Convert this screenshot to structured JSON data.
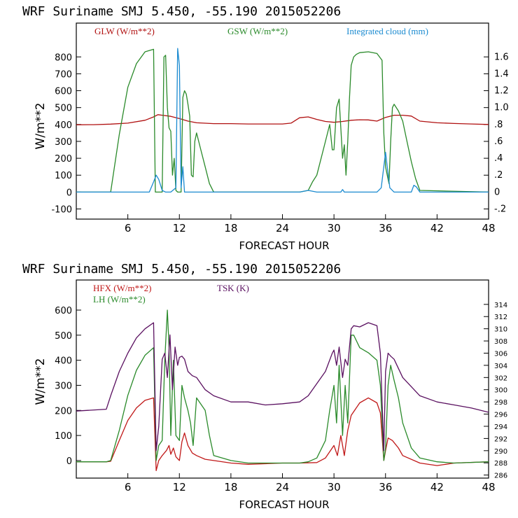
{
  "colors": {
    "glw": "#b01010",
    "gsw": "#2a8a2a",
    "cloud": "#1a8ad0",
    "hfx": "#c01818",
    "lh": "#2a8a2a",
    "tsk": "#5a1060",
    "axis": "#000000"
  },
  "chart_data": [
    {
      "type": "line",
      "title": "WRF   Suriname SMJ   5.450, -55.190  2015052206",
      "xlabel": "FORECAST HOUR",
      "ylabel": "W/m**2",
      "xlim": [
        0,
        48
      ],
      "ylim": [
        -160,
        1000
      ],
      "xticks": [
        6,
        12,
        18,
        24,
        30,
        36,
        42,
        48
      ],
      "xtick_labels": [
        "6",
        "12",
        "18",
        "24",
        "30",
        "36",
        "42",
        "48"
      ],
      "yticks": [
        -100,
        0,
        100,
        200,
        300,
        400,
        500,
        600,
        700,
        800
      ],
      "ytick_labels": [
        "-100",
        "0",
        "100",
        "200",
        "300",
        "400",
        "500",
        "600",
        "700",
        "800"
      ],
      "y2lim": [
        -0.32,
        2.0
      ],
      "y2ticks": [
        -0.2,
        0,
        0.2,
        0.4,
        0.6,
        0.8,
        1.0,
        1.2,
        1.4,
        1.6
      ],
      "y2tick_labels": [
        "-.2",
        "0",
        ".2",
        ".4",
        ".6",
        ".8",
        "1.0",
        "1.2",
        "1.4",
        "1.6"
      ],
      "legend": [
        "GLW (W/m**2)",
        "GSW (W/m**2)",
        "Integrated cloud (mm)"
      ],
      "series": [
        {
          "name": "GLW (W/m**2)",
          "color_key": "glw",
          "axis": "left",
          "x": [
            0,
            2,
            4,
            6,
            8,
            9,
            9.5,
            10,
            11,
            12,
            13,
            14,
            16,
            18,
            20,
            22,
            24,
            25,
            26,
            27,
            28,
            29,
            30,
            31,
            32,
            33,
            34,
            35,
            36,
            37,
            38,
            39,
            40,
            42,
            44,
            46,
            48
          ],
          "y": [
            398,
            399,
            402,
            408,
            425,
            445,
            458,
            455,
            448,
            435,
            420,
            410,
            405,
            405,
            403,
            403,
            403,
            408,
            440,
            445,
            430,
            418,
            413,
            418,
            425,
            428,
            427,
            420,
            442,
            455,
            455,
            450,
            420,
            410,
            406,
            403,
            400
          ]
        },
        {
          "name": "GSW (W/m**2)",
          "color_key": "gsw",
          "axis": "left",
          "x": [
            0,
            3,
            3.5,
            4,
            5,
            6,
            7,
            8,
            9,
            9.2,
            9.4,
            9.6,
            9.8,
            10,
            10.2,
            10.4,
            10.6,
            10.8,
            11,
            11.2,
            11.4,
            11.6,
            11.8,
            12,
            12.2,
            12.4,
            12.6,
            12.8,
            13,
            13.2,
            13.4,
            13.6,
            13.8,
            14,
            14.5,
            15,
            15.5,
            16,
            26,
            27,
            27.5,
            28,
            29,
            29.5,
            29.8,
            30,
            30.3,
            30.6,
            31,
            31.2,
            31.4,
            31.6,
            31.8,
            32,
            32.3,
            32.6,
            33,
            34,
            35,
            35.6,
            35.8,
            36,
            36.2,
            36.4,
            36.6,
            36.8,
            37,
            37.5,
            38,
            38.5,
            39,
            39.5,
            40,
            48
          ],
          "y": [
            0,
            0,
            0,
            0,
            340,
            620,
            760,
            830,
            845,
            0,
            0,
            0,
            0,
            0,
            800,
            810,
            500,
            380,
            360,
            100,
            200,
            10,
            0,
            0,
            0,
            560,
            600,
            580,
            520,
            450,
            100,
            90,
            300,
            350,
            250,
            150,
            50,
            0,
            0,
            10,
            60,
            100,
            300,
            400,
            250,
            250,
            500,
            550,
            200,
            280,
            100,
            300,
            550,
            750,
            800,
            815,
            825,
            830,
            820,
            780,
            350,
            150,
            100,
            50,
            300,
            500,
            520,
            480,
            420,
            300,
            180,
            80,
            10,
            0
          ]
        },
        {
          "name": "Integrated cloud (mm)",
          "color_key": "cloud",
          "axis": "right",
          "x": [
            0,
            8.5,
            9,
            9.3,
            9.6,
            10,
            10.4,
            11,
            11.6,
            11.8,
            12,
            12.2,
            12.4,
            12.6,
            13,
            26,
            27,
            28,
            30.8,
            31,
            31.2,
            35,
            35.5,
            35.8,
            36,
            36.2,
            36.5,
            37,
            39,
            39.3,
            39.6,
            40,
            48
          ],
          "y": [
            0,
            0,
            0.12,
            0.2,
            0.15,
            0.02,
            0,
            0,
            0.05,
            1.7,
            1.5,
            0.05,
            0.3,
            0,
            0,
            0,
            0.02,
            0,
            0,
            0.03,
            0,
            0,
            0.05,
            0.3,
            0.47,
            0.3,
            0.05,
            0,
            0,
            0.08,
            0.06,
            0,
            0
          ]
        }
      ]
    },
    {
      "type": "line",
      "title": "WRF   Suriname SMJ   5.450, -55.190  2015052206",
      "xlabel": "FORECAST HOUR",
      "ylabel": "W/m**2",
      "xlim": [
        0,
        48
      ],
      "ylim": [
        -70,
        720
      ],
      "xticks": [
        6,
        12,
        18,
        24,
        30,
        36,
        42,
        48
      ],
      "xtick_labels": [
        "6",
        "12",
        "18",
        "24",
        "30",
        "36",
        "42",
        "48"
      ],
      "yticks": [
        0,
        100,
        200,
        300,
        400,
        500,
        600
      ],
      "ytick_labels": [
        "0",
        "100",
        "200",
        "300",
        "400",
        "500",
        "600"
      ],
      "y2lim": [
        285.5,
        318
      ],
      "y2ticks": [
        286,
        288,
        290,
        292,
        294,
        296,
        298,
        300,
        302,
        304,
        306,
        308,
        310,
        312,
        314
      ],
      "y2tick_labels": [
        "286",
        "288",
        "290",
        "292",
        "294",
        "296",
        "298",
        "300",
        "302",
        "304",
        "306",
        "308",
        "310",
        "312",
        "314"
      ],
      "legend": [
        "HFX (W/m**2)",
        "LH  (W/m**2)",
        "TSK (K)"
      ],
      "series": [
        {
          "name": "HFX (W/m**2)",
          "color_key": "hfx",
          "axis": "left",
          "x": [
            0,
            3.5,
            4,
            5,
            6,
            7,
            8,
            9,
            9.3,
            9.6,
            10,
            10.5,
            10.8,
            11,
            11.3,
            11.6,
            12,
            12.3,
            12.6,
            13,
            13.5,
            14,
            15,
            16,
            18,
            20,
            24,
            26,
            28,
            29,
            30,
            30.4,
            30.8,
            31.2,
            31.6,
            32,
            33,
            34,
            35,
            35.4,
            35.8,
            36,
            36.3,
            36.8,
            37.5,
            38,
            40,
            42,
            44,
            48
          ],
          "y": [
            -5,
            -5,
            -3,
            80,
            160,
            210,
            240,
            250,
            -40,
            0,
            20,
            40,
            60,
            25,
            50,
            15,
            0,
            75,
            110,
            60,
            30,
            20,
            5,
            0,
            -10,
            -15,
            -10,
            -10,
            -8,
            10,
            60,
            20,
            100,
            20,
            120,
            180,
            230,
            250,
            230,
            190,
            0,
            40,
            90,
            80,
            50,
            20,
            -10,
            -20,
            -10,
            -5
          ]
        },
        {
          "name": "LH  (W/m**2)",
          "color_key": "lh",
          "axis": "left",
          "x": [
            0,
            3.5,
            4,
            5,
            6,
            7,
            8,
            9,
            9.3,
            9.6,
            10,
            10.3,
            10.6,
            10.8,
            11,
            11.3,
            11.6,
            12,
            12.3,
            12.6,
            13,
            13.3,
            13.6,
            14,
            15,
            15.5,
            16,
            18,
            20,
            24,
            26,
            27,
            28,
            29,
            29.5,
            30,
            30.3,
            30.6,
            31,
            31.3,
            31.6,
            32,
            32.3,
            33,
            34,
            35,
            35.4,
            35.8,
            36,
            36.3,
            36.6,
            37,
            37.5,
            38,
            39,
            40,
            42,
            44,
            48
          ],
          "y": [
            -5,
            -5,
            0,
            120,
            260,
            360,
            420,
            450,
            0,
            60,
            80,
            400,
            600,
            450,
            100,
            400,
            100,
            80,
            300,
            250,
            200,
            150,
            60,
            250,
            200,
            100,
            20,
            0,
            -10,
            -10,
            -10,
            -5,
            10,
            80,
            200,
            300,
            150,
            380,
            100,
            300,
            150,
            500,
            500,
            450,
            430,
            400,
            300,
            0,
            50,
            300,
            380,
            320,
            250,
            150,
            50,
            10,
            -5,
            -10,
            -5
          ]
        },
        {
          "name": "TSK (K)",
          "color_key": "tsk",
          "axis": "right",
          "x": [
            0,
            3.5,
            4,
            5,
            6,
            7,
            8,
            9,
            9.3,
            9.6,
            10,
            10.3,
            10.6,
            10.9,
            11.2,
            11.5,
            11.8,
            12,
            12.3,
            12.6,
            13,
            13.5,
            14,
            15,
            16,
            18,
            20,
            22,
            24,
            26,
            27,
            28,
            29,
            29.8,
            30,
            30.3,
            30.6,
            31,
            31.3,
            31.6,
            32,
            32.3,
            33,
            34,
            35,
            35.4,
            35.8,
            36,
            36.3,
            36.6,
            37,
            38,
            40,
            42,
            44,
            46,
            48
          ],
          "y": [
            296.5,
            296.8,
            299,
            303,
            306,
            308.5,
            310,
            311,
            290,
            294,
            305,
            306,
            302,
            309,
            300,
            307,
            304,
            305.3,
            305.5,
            305,
            303,
            302.3,
            302,
            300,
            299,
            298,
            298,
            297.5,
            297.7,
            298,
            299,
            301,
            303,
            306,
            306.5,
            304,
            307,
            302,
            305,
            304,
            310,
            310.5,
            310.3,
            311,
            310.5,
            306,
            290,
            303,
            306,
            305.5,
            305,
            302,
            299,
            298,
            297.5,
            297,
            296.3
          ]
        }
      ]
    }
  ]
}
